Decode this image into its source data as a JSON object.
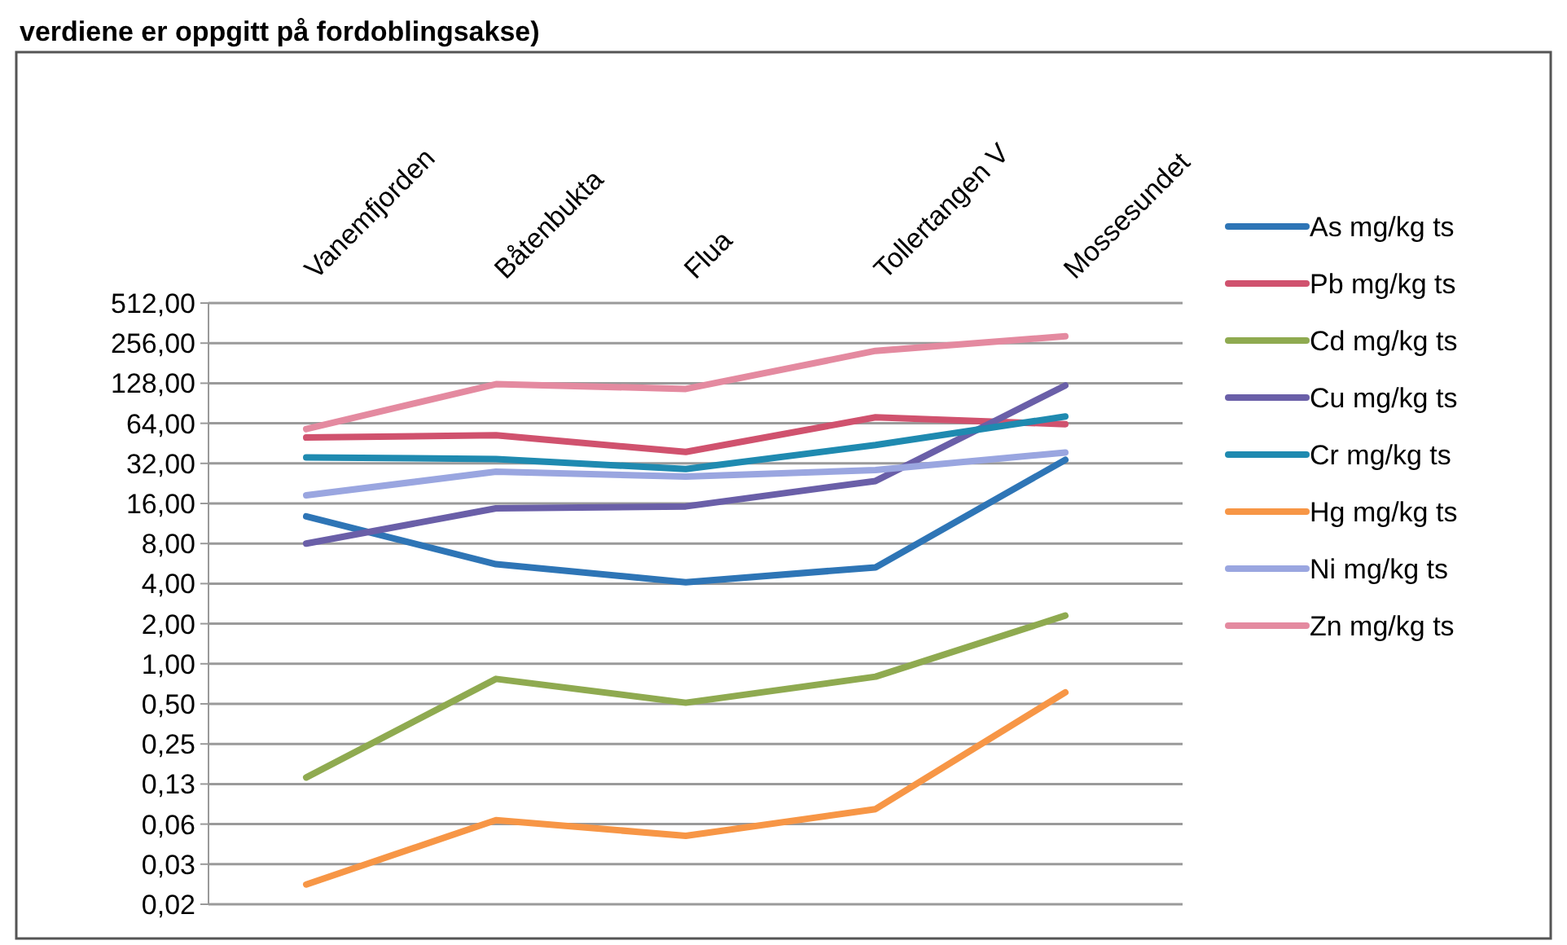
{
  "chart_data": {
    "type": "line",
    "title": "verdiene er oppgitt på fordoblingsakse)",
    "categories": [
      "Vanemfjorden",
      "Båtenbukta",
      "Flua",
      "Tollertangen V",
      "Mossesundet"
    ],
    "log": true,
    "grid": "y",
    "legend": "right",
    "line_style": "solid",
    "ylim": [
      0.015625,
      512
    ],
    "yticks": [
      {
        "value": 0.015625,
        "label": "0,02"
      },
      {
        "value": 0.03125,
        "label": "0,03"
      },
      {
        "value": 0.0625,
        "label": "0,06"
      },
      {
        "value": 0.125,
        "label": "0,13"
      },
      {
        "value": 0.25,
        "label": "0,25"
      },
      {
        "value": 0.5,
        "label": "0,50"
      },
      {
        "value": 1,
        "label": "1,00"
      },
      {
        "value": 2,
        "label": "2,00"
      },
      {
        "value": 4,
        "label": "4,00"
      },
      {
        "value": 8,
        "label": "8,00"
      },
      {
        "value": 16,
        "label": "16,00"
      },
      {
        "value": 32,
        "label": "32,00"
      },
      {
        "value": 64,
        "label": "64,00"
      },
      {
        "value": 128,
        "label": "128,00"
      },
      {
        "value": 256,
        "label": "256,00"
      },
      {
        "value": 512,
        "label": "512,00"
      }
    ],
    "series": [
      {
        "name": "As mg/kg ts",
        "color": "#2e75b6",
        "values": [
          12.8,
          5.6,
          4.1,
          5.3,
          34
        ]
      },
      {
        "name": "Pb mg/kg ts",
        "color": "#d0526e",
        "values": [
          50,
          52,
          39,
          71,
          63
        ]
      },
      {
        "name": "Cd mg/kg ts",
        "color": "#8faa50",
        "values": [
          0.14,
          0.77,
          0.51,
          0.8,
          2.3
        ]
      },
      {
        "name": "Cu mg/kg ts",
        "color": "#6a5fa8",
        "values": [
          8,
          14.7,
          15.2,
          23.6,
          123
        ]
      },
      {
        "name": "Cr mg/kg ts",
        "color": "#1f8ab0",
        "values": [
          35.5,
          34.5,
          29,
          44,
          72
        ]
      },
      {
        "name": "Hg mg/kg ts",
        "color": "#f79646",
        "values": [
          0.022,
          0.067,
          0.051,
          0.081,
          0.61
        ]
      },
      {
        "name": "Ni mg/kg ts",
        "color": "#9aa6e0",
        "values": [
          18.4,
          27.7,
          25.5,
          28.5,
          38.6
        ]
      },
      {
        "name": "Zn mg/kg ts",
        "color": "#e48aa0",
        "values": [
          58,
          126,
          116,
          224,
          288
        ]
      }
    ]
  }
}
